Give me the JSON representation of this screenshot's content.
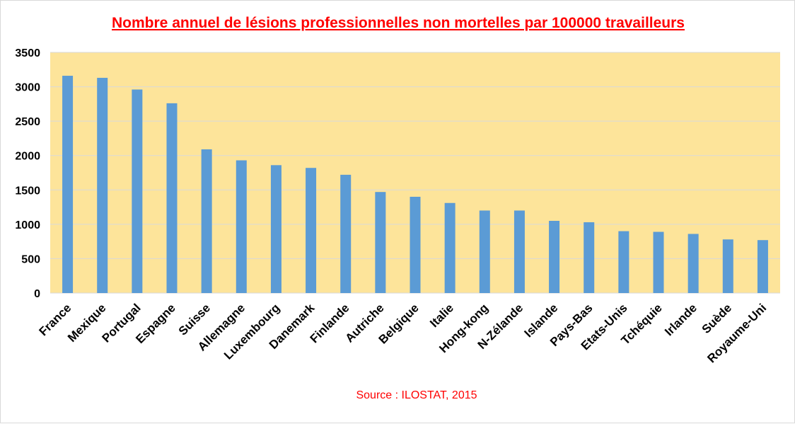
{
  "chart_data": {
    "type": "bar",
    "title": "Nombre annuel de lésions professionnelles non mortelles par 100000 travailleurs",
    "source": "Source : ILOSTAT, 2015",
    "xlabel": "",
    "ylabel": "",
    "categories": [
      "France",
      "Mexique",
      "Portugal",
      "Espagne",
      "Suisse",
      "Allemagne",
      "Luxembourg",
      "Danemark",
      "Finlande",
      "Autriche",
      "Belgique",
      "Italie",
      "Hong-kong",
      "N-Zélande",
      "Islande",
      "Pays-Bas",
      "Etats-Unis",
      "Tchéquie",
      "Irlande",
      "Suède",
      "Royaume-Uni"
    ],
    "values": [
      3160,
      3130,
      2960,
      2760,
      2090,
      1930,
      1860,
      1820,
      1720,
      1470,
      1400,
      1310,
      1200,
      1200,
      1050,
      1030,
      900,
      890,
      860,
      780,
      770
    ],
    "yticks": [
      "0",
      "500",
      "1000",
      "1500",
      "2000",
      "2500",
      "3000",
      "3500"
    ],
    "ylim": [
      0,
      3500
    ],
    "grid": true,
    "legend": "none",
    "colors": {
      "plot_background": "#fde49a",
      "bar": "#5b9bd5",
      "gridline": "#d9d9d9",
      "title": "#ff0000",
      "source": "#ff0000"
    }
  }
}
